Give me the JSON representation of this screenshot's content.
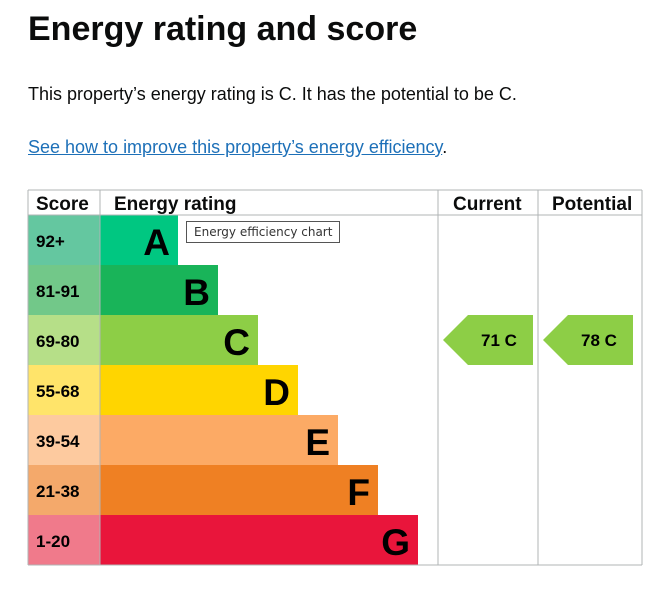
{
  "title": "Energy rating and score",
  "intro": "This property’s energy rating is C. It has the potential to be C.",
  "link_text": "See how to improve this property’s energy efficiency",
  "link_suffix": ".",
  "tooltip": "Energy efficiency chart",
  "chart_data": {
    "type": "bar",
    "headers": [
      "Score",
      "Energy rating",
      "Current",
      "Potential"
    ],
    "bands": [
      {
        "score": "92+",
        "letter": "A",
        "bar_color": "#00c781",
        "score_color": "#64c7a0"
      },
      {
        "score": "81-91",
        "letter": "B",
        "bar_color": "#19b459",
        "score_color": "#72c889"
      },
      {
        "score": "69-80",
        "letter": "C",
        "bar_color": "#8dce46",
        "score_color": "#b6df88"
      },
      {
        "score": "55-68",
        "letter": "D",
        "bar_color": "#ffd500",
        "score_color": "#ffe46a"
      },
      {
        "score": "39-54",
        "letter": "E",
        "bar_color": "#fcaa65",
        "score_color": "#fdca9f"
      },
      {
        "score": "21-38",
        "letter": "F",
        "bar_color": "#ef8023",
        "score_color": "#f4a96b"
      },
      {
        "score": "1-20",
        "letter": "G",
        "bar_color": "#e9153b",
        "score_color": "#f07a8b"
      }
    ],
    "current": {
      "value": 71,
      "letter": "C",
      "label": "71  C"
    },
    "potential": {
      "value": 78,
      "letter": "C",
      "label": "78  C"
    }
  }
}
